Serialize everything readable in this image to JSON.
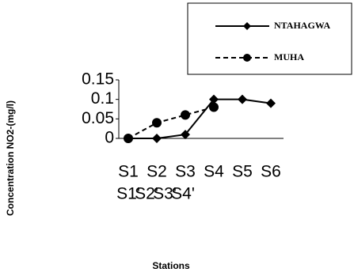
{
  "chart_data": {
    "type": "line",
    "y_label": "Concentration NO2-(mg/l)",
    "x_label": "Stations",
    "categories": [
      [
        "S1",
        "S1'"
      ],
      [
        "S2",
        "S2'"
      ],
      [
        "S3",
        "S3'"
      ],
      [
        "S4",
        "S4'"
      ],
      [
        "S5"
      ],
      [
        "S6"
      ]
    ],
    "series": [
      {
        "name": "NTAHAGWA",
        "color": "#000000",
        "dash": false,
        "marker": "diamond",
        "values": [
          0,
          0,
          0.01,
          0.1,
          0.1,
          0.09
        ]
      },
      {
        "name": "MUHA",
        "color": "#000000",
        "dash": true,
        "marker": "circle",
        "values": [
          0,
          0.04,
          0.06,
          0.08,
          null,
          null
        ]
      }
    ],
    "ylim": [
      0,
      0.15
    ],
    "yticks": [
      0,
      0.05,
      0.1,
      0.15
    ],
    "grid": false,
    "legend": "top-right"
  }
}
